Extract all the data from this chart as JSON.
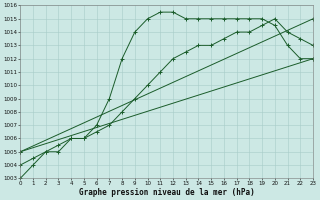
{
  "xlabel": "Graphe pression niveau de la mer (hPa)",
  "bg_color": "#cce8e4",
  "grid_color": "#a8ccc8",
  "line_color": "#1a5c2a",
  "x_min": 0,
  "x_max": 23,
  "y_min": 1003,
  "y_max": 1016,
  "line1_x": [
    0,
    1,
    2,
    3,
    4,
    5,
    6,
    7,
    8,
    9,
    10,
    11,
    12,
    13,
    14,
    15,
    16,
    17,
    18,
    19,
    20,
    21,
    22,
    23
  ],
  "line1_y": [
    1003,
    1004,
    1005,
    1005,
    1006,
    1006,
    1007,
    1009,
    1012,
    1014,
    1015,
    1015.5,
    1015.5,
    1015,
    1015,
    1015,
    1015,
    1015,
    1015,
    1015,
    1014.5,
    1013,
    1012,
    1012
  ],
  "line2_x": [
    0,
    1,
    2,
    3,
    4,
    5,
    6,
    7,
    8,
    9,
    10,
    11,
    12,
    13,
    14,
    15,
    16,
    17,
    18,
    19,
    20,
    21,
    22,
    23
  ],
  "line2_y": [
    1004,
    1004.5,
    1005,
    1005.5,
    1006,
    1006,
    1006.5,
    1007,
    1008,
    1009,
    1010,
    1011,
    1012,
    1012.5,
    1013,
    1013,
    1013.5,
    1014,
    1014,
    1014.5,
    1015,
    1014,
    1013.5,
    1013
  ],
  "line3_x": [
    0,
    23
  ],
  "line3_y": [
    1005,
    1015
  ],
  "line4_x": [
    0,
    23
  ],
  "line4_y": [
    1005,
    1012
  ]
}
